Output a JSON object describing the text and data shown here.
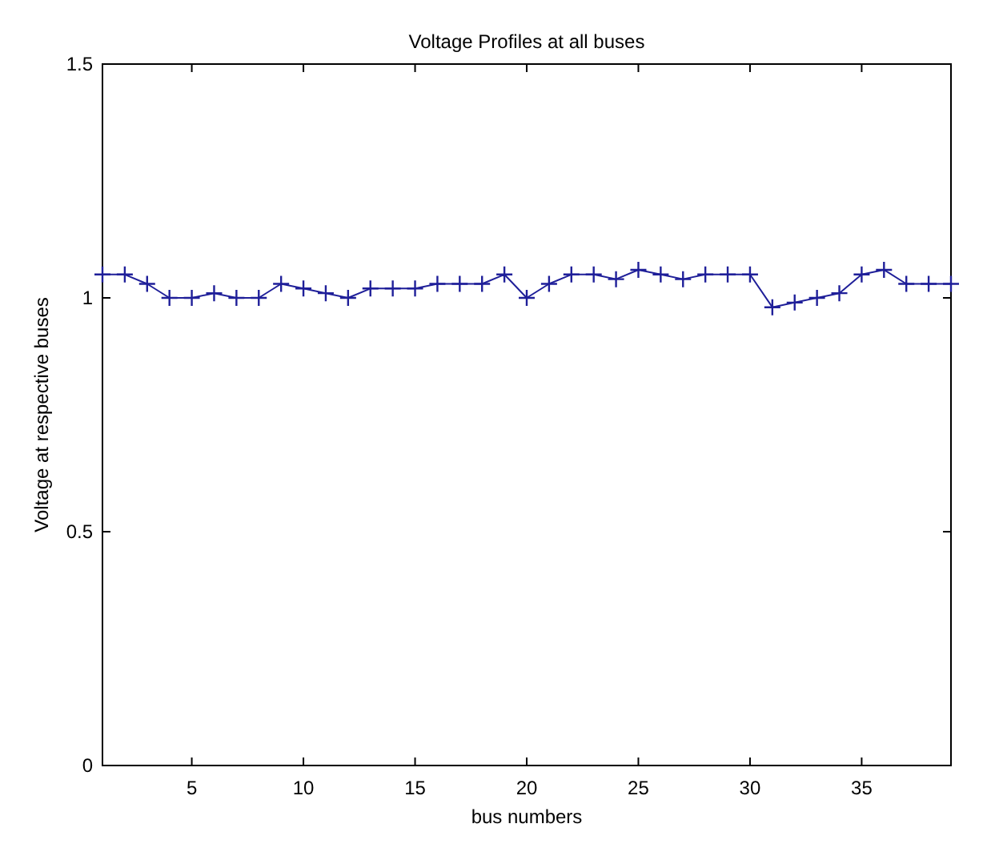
{
  "chart_data": {
    "type": "line",
    "title": "Voltage Profiles at all buses",
    "xlabel": "bus numbers",
    "ylabel": "Voltage at respective buses",
    "x": [
      1,
      2,
      3,
      4,
      5,
      6,
      7,
      8,
      9,
      10,
      11,
      12,
      13,
      14,
      15,
      16,
      17,
      18,
      19,
      20,
      21,
      22,
      23,
      24,
      25,
      26,
      27,
      28,
      29,
      30,
      31,
      32,
      33,
      34,
      35,
      36,
      37,
      38,
      39
    ],
    "series": [
      {
        "color": "#1f1f99",
        "values": [
          1.05,
          1.05,
          1.03,
          1.0,
          1.0,
          1.01,
          1.0,
          1.0,
          1.03,
          1.02,
          1.01,
          1.0,
          1.02,
          1.02,
          1.02,
          1.03,
          1.03,
          1.03,
          1.05,
          1.0,
          1.03,
          1.05,
          1.05,
          1.04,
          1.06,
          1.05,
          1.04,
          1.05,
          1.05,
          1.05,
          0.98,
          0.99,
          1.0,
          1.01,
          1.05,
          1.06,
          1.03,
          1.03,
          1.03
        ]
      }
    ],
    "xlim": [
      1,
      39
    ],
    "ylim": [
      0,
      1.5
    ],
    "xticks": [
      5,
      10,
      15,
      20,
      25,
      30,
      35
    ],
    "yticks": [
      0,
      0.5,
      1,
      1.5
    ],
    "marker": "cross",
    "line_style": "solid"
  }
}
